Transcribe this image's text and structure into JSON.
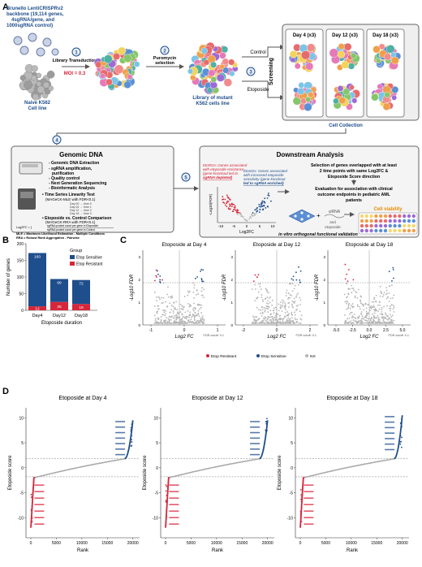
{
  "panel_letters": [
    "A",
    "B",
    "C",
    "D"
  ],
  "panel_a": {
    "library_text": [
      "Brunello LentiCRISPRv2",
      "backbone (19,114 genes,",
      "4sgRNA/gene, and",
      "1000sgRNA control)"
    ],
    "naive_label": [
      "Naive K562",
      "Cell line"
    ],
    "steps": [
      {
        "num": "1",
        "label": "Library Transduction",
        "sub": "MOI = 0.3"
      },
      {
        "num": "2",
        "label": "Puromycin",
        "label2": "selection"
      },
      {
        "num": "3",
        "label": "Screening"
      },
      {
        "num": "4"
      },
      {
        "num": "5"
      }
    ],
    "mutant_label": [
      "Library of mutant",
      "K562 cells line"
    ],
    "control_label": "Control",
    "etoposide_label": "Etoposide",
    "days": [
      "Day 4 (x3)",
      "Day 12 (x3)",
      "Day 18 (x3)"
    ],
    "collection_label": "Cell Collection",
    "genomic": {
      "title": "Genomic DNA",
      "bullets": [
        "- Genomic DNA Extraction",
        "- sgRNA amplification,",
        "  purification",
        "- Quality control",
        "- Next Generation Sequencing",
        "- Bioinformatic Analysis"
      ],
      "time_series_title": "• Time Series Linearity Test",
      "time_series_sub": "(MAGeCK-MLE with FDR<0.1)",
      "time_rows": [
        "Day 00 → time 0",
        "Day 04 → time 1",
        "Day 12 → time 2",
        "Day 18 → time 3"
      ],
      "comparison_title": "• Etoposide vs. Control Comparison",
      "comparison_sub": "(MAGeCK-RRA with FDR<0.1)",
      "formula_lhs": "Log2FC = [",
      "formula_num": "sgRNA pooled count per gene in Etoposide",
      "formula_den": "sgRNA pooled count per gene in Control",
      "mle_def": "MLE = Maximum Likelihood Estimation - Multiple Conditions",
      "rra_def": "RRA = Robust Rank Aggregation - Pairwise"
    },
    "downstream": {
      "title": "Downstream Analysis",
      "etorgs": [
        "EtoRGs: Genes associated",
        "with etoposide resistance",
        "(gene knockout led to",
        "sgRNA depleted)"
      ],
      "etosgs": [
        "EtoSGs: Genes associated",
        "with increased etoposide",
        "sensitivity (gene knockout",
        "led to sgRNA enriched)"
      ],
      "volcano_xticks": [
        "-10",
        "-5",
        "0",
        "5",
        "10"
      ],
      "volcano_xlabel": "Log2FC",
      "volcano_ylabel": "-Log10(FDR)",
      "right_text1": [
        "Selection of genes overlapped with at least",
        "2 time points with same Log2FC &",
        "Etoposide Score direction"
      ],
      "right_text2": [
        "Evaluation for association with clinical",
        "outcome endpoints in pediatric AML",
        "patients"
      ],
      "sirna_label": "siRNA",
      "and_label": [
        "and",
        "etoposide"
      ],
      "viability_label": "Cell viability",
      "validation_label": "in vitro orthogonal functional validation"
    }
  },
  "panel_b": {
    "ylabel": "Number of genes",
    "xlabel": "Etoposide duration",
    "legend_title": "Group",
    "legend": [
      "Etop Sensitive",
      "Etop Resistant"
    ],
    "colors": {
      "sensitive": "#1f4e8c",
      "resistant": "#d6263a"
    },
    "yticks": [
      "0",
      "50",
      "100",
      "150",
      "200"
    ]
  },
  "panel_c": {
    "titles": [
      "Etoposide at Day 4",
      "Etoposide at Day 12",
      "Etoposide at Day 18"
    ],
    "xlabel": "Log2 FC",
    "ylabel": "-Log10 FDR",
    "cutoff": "FDR cutoff: 0.1",
    "legend": [
      "Etop Resistant",
      "Etop Sensitive",
      "NS"
    ],
    "xticks": [
      [
        "-1",
        "0",
        "1"
      ],
      [
        "-2",
        "0",
        "2"
      ],
      [
        "-5.0",
        "-2.5",
        "0.0",
        "2.5",
        "5.0"
      ]
    ]
  },
  "panel_d": {
    "titles": [
      "Etoposide at Day 4",
      "Etoposide at Day 12",
      "Etoposide at Day 18"
    ],
    "xlabel": "Rank",
    "ylabel": "Etoposide score",
    "xticks": [
      "0",
      "5000",
      "10000",
      "15000",
      "20000"
    ],
    "yticks": [
      [
        "10",
        "5",
        "0",
        "-5",
        "-10"
      ],
      [
        "10",
        "5",
        "0",
        "-5",
        "-10"
      ],
      [
        "10",
        "5",
        "0",
        "-5",
        "-10"
      ]
    ]
  },
  "chart_data": [
    {
      "type": "bar",
      "title": "",
      "xlabel": "Etoposide duration",
      "ylabel": "Number of genes",
      "categories": [
        "Day4",
        "Day12",
        "Day18"
      ],
      "series": [
        {
          "name": "Etop Sensitive",
          "values": [
            160,
            69,
            72
          ]
        },
        {
          "name": "Etop Resistant",
          "values": [
            12,
            25,
            19
          ]
        }
      ],
      "stacked": true,
      "ylim": [
        0,
        200
      ],
      "legend": "right"
    },
    {
      "type": "scatter",
      "title": "Etoposide at Day 4",
      "xlabel": "Log2 FC",
      "ylabel": "-Log10 FDR",
      "series": [
        {
          "name": "Etop Resistant"
        },
        {
          "name": "Etop Sensitive"
        },
        {
          "name": "NS"
        }
      ]
    },
    {
      "type": "scatter",
      "title": "Etoposide at Day 12",
      "xlabel": "Log2 FC",
      "ylabel": "-Log10 FDR",
      "series": [
        {
          "name": "Etop Resistant"
        },
        {
          "name": "Etop Sensitive"
        },
        {
          "name": "NS"
        }
      ]
    },
    {
      "type": "scatter",
      "title": "Etoposide at Day 18",
      "xlabel": "Log2 FC",
      "ylabel": "-Log10 FDR",
      "series": [
        {
          "name": "Etop Resistant"
        },
        {
          "name": "Etop Sensitive"
        },
        {
          "name": "NS"
        }
      ]
    },
    {
      "type": "line",
      "title": "Etoposide at Day 4",
      "xlabel": "Rank",
      "ylabel": "Etoposide score",
      "xlim": [
        0,
        20000
      ],
      "ylim": [
        -14,
        12
      ]
    },
    {
      "type": "line",
      "title": "Etoposide at Day 12",
      "xlabel": "Rank",
      "ylabel": "Etoposide score",
      "xlim": [
        0,
        20000
      ],
      "ylim": [
        -14,
        12
      ]
    },
    {
      "type": "line",
      "title": "Etoposide at Day 18",
      "xlabel": "Rank",
      "ylabel": "Etoposide score",
      "xlim": [
        0,
        20000
      ],
      "ylim": [
        -14,
        12
      ]
    }
  ]
}
